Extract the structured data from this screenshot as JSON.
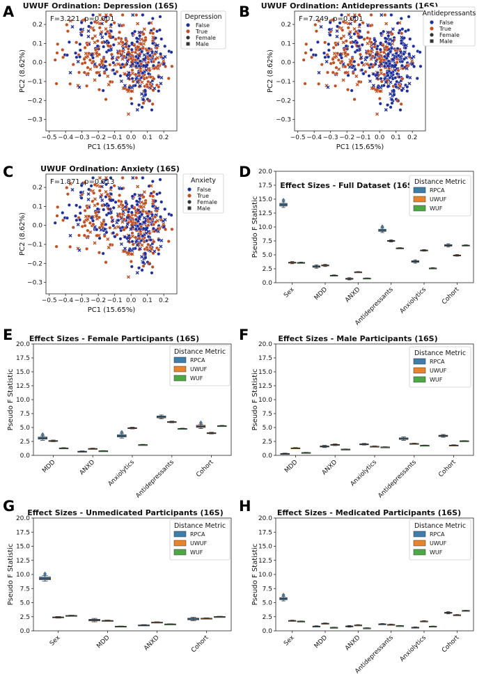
{
  "figure": {
    "colors": {
      "false": "#1f2f9a",
      "true": "#c14f22",
      "rpca": "#3d7eaa",
      "uwuf": "#e8842b",
      "wuf": "#4ea844"
    },
    "panels": [
      {
        "label": "A",
        "title": "UWUF Ordination: Depression (16S)",
        "stat": "F=3.221, p=0.001",
        "legend_title": "Depression"
      },
      {
        "label": "B",
        "title": "UWUF Ordination: Antidepressants (16S)",
        "stat": "F=7.249, p=0.001",
        "legend_title": "Antidepressants"
      },
      {
        "label": "C",
        "title": "UWUF Ordination: Anxiety (16S)",
        "stat": "F=1.871, p=0.013",
        "legend_title": "Anxiety"
      },
      {
        "label": "D",
        "title": "Effect Sizes - Full Dataset (16S)"
      },
      {
        "label": "E",
        "title": "Effect Sizes - Female Participants (16S)"
      },
      {
        "label": "F",
        "title": "Effect Sizes - Male Participants (16S)"
      },
      {
        "label": "G",
        "title": "Effect Sizes - Unmedicated Participants (16S)"
      },
      {
        "label": "H",
        "title": "Effect Sizes - Medicated Participants (16S)"
      }
    ],
    "ordination_legend": [
      "False",
      "True",
      "Female",
      "Male"
    ],
    "effect_legend_title": "Distance Metric"
  },
  "chart_data": [
    {
      "type": "scatter",
      "title": "UWUF Ordination: Depression (16S)",
      "xlabel": "PC1 (15.65%)",
      "ylabel": "PC2 (8.62%)",
      "xlim": [
        -0.52,
        0.28
      ],
      "ylim": [
        -0.36,
        0.27
      ],
      "xticks": [
        -0.5,
        -0.4,
        -0.3,
        -0.2,
        -0.1,
        0.0,
        0.1,
        0.2
      ],
      "xtick_labels": [
        "−0.5",
        "−0.4",
        "−0.3",
        "−0.2",
        "−0.1",
        "0.0",
        "0.1",
        "0.2"
      ],
      "yticks": [
        -0.3,
        -0.2,
        -0.1,
        0.0,
        0.1,
        0.2
      ],
      "ytick_labels": [
        "−0.3",
        "−0.2",
        "−0.1",
        "0.0",
        "0.1",
        "0.2"
      ],
      "groups": [
        "False",
        "True"
      ],
      "shapes": [
        "Female",
        "Male"
      ],
      "annotation": "F=3.221, p=0.001"
    },
    {
      "type": "scatter",
      "title": "UWUF Ordination: Antidepressants (16S)",
      "xlabel": "PC1 (15.65%)",
      "ylabel": "PC2 (8.62%)",
      "xlim": [
        -0.52,
        0.28
      ],
      "ylim": [
        -0.36,
        0.27
      ],
      "xticks": [
        -0.5,
        -0.4,
        -0.3,
        -0.2,
        -0.1,
        0.0,
        0.1,
        0.2
      ],
      "xtick_labels": [
        "−0.5",
        "−0.4",
        "−0.3",
        "−0.2",
        "−0.1",
        "0.0",
        "0.1",
        "0.2"
      ],
      "yticks": [
        -0.3,
        -0.2,
        -0.1,
        0.0,
        0.1,
        0.2
      ],
      "ytick_labels": [
        "−0.3",
        "−0.2",
        "−0.1",
        "0.0",
        "0.1",
        "0.2"
      ],
      "groups": [
        "False",
        "True"
      ],
      "shapes": [
        "Female",
        "Male"
      ],
      "annotation": "F=7.249, p=0.001"
    },
    {
      "type": "scatter",
      "title": "UWUF Ordination: Anxiety (16S)",
      "xlabel": "PC1 (15.65%)",
      "ylabel": "PC2 (8.62%)",
      "xlim": [
        -0.52,
        0.28
      ],
      "ylim": [
        -0.36,
        0.27
      ],
      "xticks": [
        -0.5,
        -0.4,
        -0.3,
        -0.2,
        -0.1,
        0.0,
        0.1,
        0.2
      ],
      "xtick_labels": [
        "−0.5",
        "−0.4",
        "−0.3",
        "−0.2",
        "−0.1",
        "0.0",
        "0.1",
        "0.2"
      ],
      "yticks": [
        -0.3,
        -0.2,
        -0.1,
        0.0,
        0.1,
        0.2
      ],
      "ytick_labels": [
        "−0.3",
        "−0.2",
        "−0.1",
        "0.0",
        "0.1",
        "0.2"
      ],
      "groups": [
        "False",
        "True"
      ],
      "shapes": [
        "Female",
        "Male"
      ],
      "annotation": "F=1.871, p=0.013"
    },
    {
      "type": "box",
      "title": "Effect Sizes - Full Dataset (16S)",
      "ylabel": "Pseudo F Statistic",
      "ylim": [
        0,
        20
      ],
      "yticks": [
        0,
        2.5,
        5,
        7.5,
        10,
        12.5,
        15,
        17.5,
        20
      ],
      "ytick_labels": [
        "0.0",
        "2.5",
        "5.0",
        "7.5",
        "10.0",
        "12.5",
        "15.0",
        "17.5",
        "20.0"
      ],
      "categories": [
        "Sex",
        "MDD",
        "ANXD",
        "Antidepressants",
        "Anxiolytics",
        "Cohort"
      ],
      "series": [
        {
          "name": "RPCA",
          "values": [
            14.0,
            2.9,
            0.7,
            9.4,
            3.8,
            6.7
          ],
          "spread": [
            0.5,
            0.3,
            0.2,
            0.4,
            0.3,
            0.3
          ]
        },
        {
          "name": "UWUF",
          "values": [
            3.6,
            3.1,
            1.9,
            7.5,
            5.8,
            4.9
          ],
          "spread": [
            0.2,
            0.2,
            0.1,
            0.2,
            0.15,
            0.15
          ]
        },
        {
          "name": "WUF",
          "values": [
            3.6,
            1.3,
            0.8,
            6.2,
            2.6,
            6.7
          ],
          "spread": [
            0.1,
            0.1,
            0.05,
            0.1,
            0.1,
            0.1
          ]
        }
      ],
      "legend_title": "Distance Metric"
    },
    {
      "type": "box",
      "title": "Effect Sizes - Female Participants (16S)",
      "ylabel": "Pseudo F Statistic",
      "ylim": [
        0,
        20
      ],
      "yticks": [
        0,
        2.5,
        5,
        7.5,
        10,
        12.5,
        15,
        17.5,
        20
      ],
      "ytick_labels": [
        "0.0",
        "2.5",
        "5.0",
        "7.5",
        "10.0",
        "12.5",
        "15.0",
        "17.5",
        "20.0"
      ],
      "categories": [
        "MDD",
        "ANXD",
        "Anxiolytics",
        "Antidepressants",
        "Cohort"
      ],
      "series": [
        {
          "name": "RPCA",
          "values": [
            3.1,
            0.7,
            3.5,
            6.9,
            5.2
          ],
          "spread": [
            0.4,
            0.1,
            0.4,
            0.35,
            0.4
          ]
        },
        {
          "name": "UWUF",
          "values": [
            2.6,
            1.2,
            4.9,
            6.0,
            4.0
          ],
          "spread": [
            0.15,
            0.1,
            0.15,
            0.15,
            0.15
          ]
        },
        {
          "name": "WUF",
          "values": [
            1.3,
            0.8,
            1.9,
            4.8,
            5.3
          ],
          "spread": [
            0.08,
            0.05,
            0.08,
            0.08,
            0.08
          ]
        }
      ],
      "legend_title": "Distance Metric"
    },
    {
      "type": "box",
      "title": "Effect Sizes - Male Participants (16S)",
      "ylabel": "Pseudo F Statistic",
      "ylim": [
        0,
        20
      ],
      "yticks": [
        0,
        2.5,
        5,
        7.5,
        10,
        12.5,
        15,
        17.5,
        20
      ],
      "ytick_labels": [
        "0.0",
        "2.5",
        "5.0",
        "7.5",
        "10.0",
        "12.5",
        "15.0",
        "17.5",
        "20.0"
      ],
      "categories": [
        "MDD",
        "ANXD",
        "Anxiolytics",
        "Antidepressants",
        "Cohort"
      ],
      "series": [
        {
          "name": "RPCA",
          "values": [
            0.3,
            1.6,
            2.0,
            3.0,
            3.5
          ],
          "spread": [
            0.1,
            0.2,
            0.15,
            0.3,
            0.25
          ]
        },
        {
          "name": "UWUF",
          "values": [
            1.3,
            1.9,
            1.6,
            2.1,
            1.8
          ],
          "spread": [
            0.1,
            0.15,
            0.1,
            0.1,
            0.1
          ]
        },
        {
          "name": "WUF",
          "values": [
            0.5,
            1.1,
            1.5,
            1.8,
            2.6
          ],
          "spread": [
            0.05,
            0.05,
            0.05,
            0.05,
            0.05
          ]
        }
      ],
      "legend_title": "Distance Metric"
    },
    {
      "type": "box",
      "title": "Effect Sizes - Unmedicated Participants (16S)",
      "ylabel": "Pseudo F Statistic",
      "ylim": [
        0,
        20
      ],
      "yticks": [
        0,
        2.5,
        5,
        7.5,
        10,
        12.5,
        15,
        17.5,
        20
      ],
      "ytick_labels": [
        "0.0",
        "2.5",
        "5.0",
        "7.5",
        "10.0",
        "12.5",
        "15.0",
        "17.5",
        "20.0"
      ],
      "categories": [
        "Sex",
        "MDD",
        "ANXD",
        "Cohort"
      ],
      "series": [
        {
          "name": "RPCA",
          "values": [
            9.3,
            1.9,
            1.0,
            2.1
          ],
          "spread": [
            0.5,
            0.3,
            0.1,
            0.3
          ]
        },
        {
          "name": "UWUF",
          "values": [
            2.4,
            1.8,
            1.5,
            2.2
          ],
          "spread": [
            0.15,
            0.1,
            0.1,
            0.1
          ]
        },
        {
          "name": "WUF",
          "values": [
            2.7,
            0.8,
            1.2,
            2.5
          ],
          "spread": [
            0.08,
            0.05,
            0.05,
            0.08
          ]
        }
      ],
      "legend_title": "Distance Metric"
    },
    {
      "type": "box",
      "title": "Effect Sizes - Medicated Participants (16S)",
      "ylabel": "Pseudo F Statistic",
      "ylim": [
        0,
        20
      ],
      "yticks": [
        0,
        2.5,
        5,
        7.5,
        10,
        12.5,
        15,
        17.5,
        20
      ],
      "ytick_labels": [
        "0.0",
        "2.5",
        "5.0",
        "7.5",
        "10.0",
        "12.5",
        "15.0",
        "17.5",
        "20.0"
      ],
      "categories": [
        "Sex",
        "MDD",
        "ANXD",
        "Antidepressants",
        "Anxiolytics",
        "Cohort"
      ],
      "series": [
        {
          "name": "RPCA",
          "values": [
            5.7,
            0.8,
            0.8,
            1.2,
            0.6,
            3.2
          ],
          "spread": [
            0.4,
            0.1,
            0.15,
            0.1,
            0.1,
            0.2
          ]
        },
        {
          "name": "UWUF",
          "values": [
            1.8,
            1.3,
            1.0,
            1.1,
            1.7,
            2.8
          ],
          "spread": [
            0.1,
            0.1,
            0.1,
            0.1,
            0.1,
            0.1
          ]
        },
        {
          "name": "WUF",
          "values": [
            1.7,
            0.6,
            0.5,
            0.9,
            0.8,
            3.6
          ],
          "spread": [
            0.05,
            0.05,
            0.05,
            0.05,
            0.05,
            0.05
          ]
        }
      ],
      "legend_title": "Distance Metric"
    }
  ]
}
